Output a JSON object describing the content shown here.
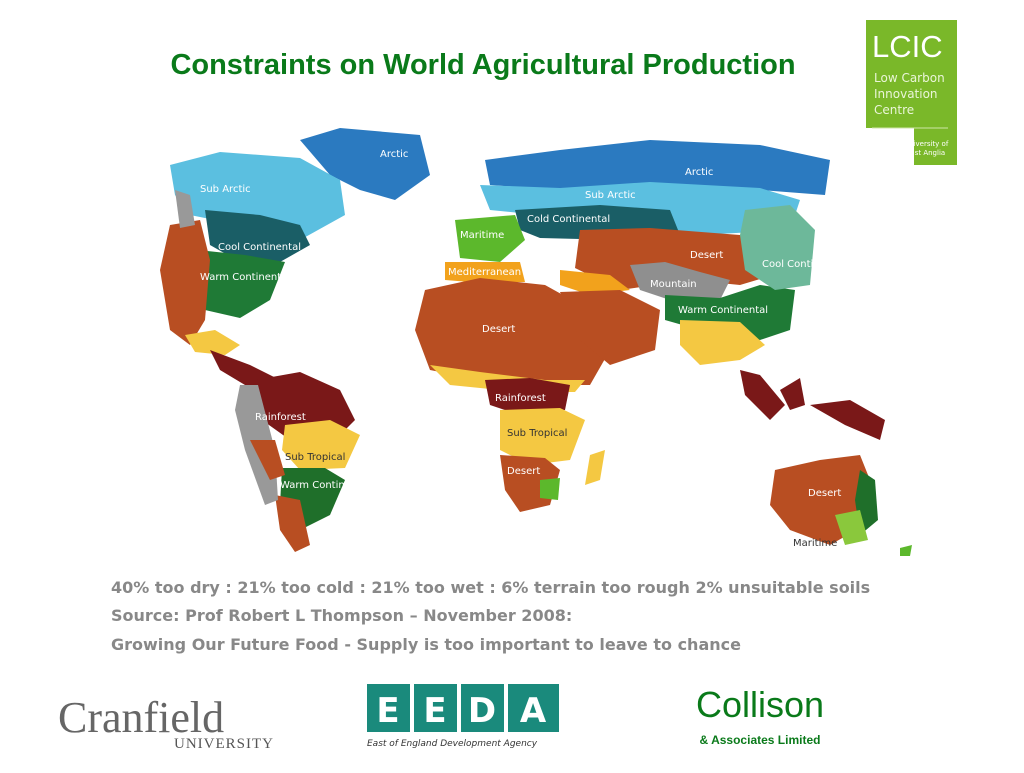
{
  "title": "Constraints on World Agricultural Production",
  "lcic_logo": {
    "mark": "LCIC",
    "lines": [
      "Low Carbon",
      "Innovation",
      "Centre"
    ],
    "university": [
      "University of",
      "East Anglia"
    ]
  },
  "map": {
    "labels": [
      "Arctic",
      "Sub Arctic",
      "Cool Continental",
      "Warm Continental",
      "Rainforest",
      "Sub Tropical",
      "Warm Continental",
      "Arctic",
      "Sub Arctic",
      "Cold Continental",
      "Maritime",
      "Mediterranean",
      "Desert",
      "Desert",
      "Mountain",
      "Cool Continental",
      "Warm Continental",
      "Rainforest",
      "Sub Tropical",
      "Desert",
      "Desert",
      "Maritime"
    ]
  },
  "caption": [
    "40% too dry : 21% too cold : 21% too wet : 6% terrain too rough 2% unsuitable soils",
    "Source: Prof Robert L Thompson – November 2008:",
    "Growing Our Future Food - Supply is too important to leave to chance"
  ],
  "logos": {
    "cranfield": {
      "name": "Cranfield",
      "sub": "UNIVERSITY"
    },
    "eeda": {
      "letters": [
        "E",
        "E",
        "D",
        "A"
      ],
      "sub": "East of England Development Agency"
    },
    "collison": {
      "name": "Collison",
      "sub": "& Associates Limited"
    }
  }
}
